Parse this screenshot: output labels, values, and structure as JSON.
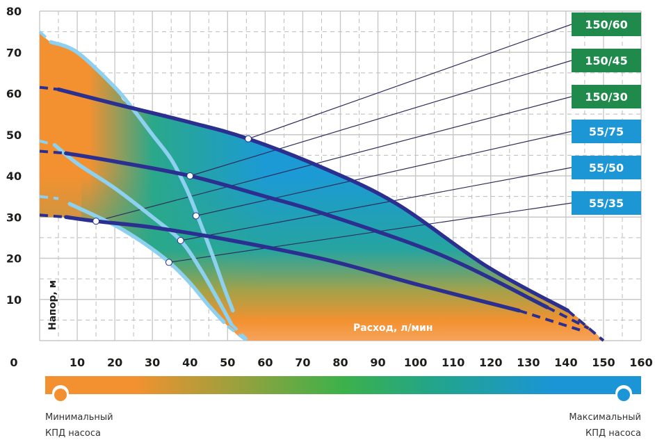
{
  "chart_data": {
    "type": "line",
    "xlabel": "Расход, л/мин",
    "ylabel": "Напор, м",
    "xlim": [
      0,
      160
    ],
    "ylim": [
      0,
      80
    ],
    "x_ticks": [
      0,
      10,
      20,
      30,
      40,
      50,
      60,
      70,
      80,
      90,
      100,
      110,
      120,
      130,
      140,
      150,
      160
    ],
    "y_ticks": [
      10,
      20,
      30,
      40,
      50,
      60,
      70,
      80
    ],
    "grid": true,
    "colors": {
      "dark_curve": "#2b2f8f",
      "light_curve": "#8dd0ef",
      "green_box": "#1f8a4c",
      "blue_box": "#1c96d4",
      "orange": "#f39130",
      "green": "#3cb14a",
      "blue": "#1b95d5"
    },
    "series": [
      {
        "name": "150/60",
        "group": "150",
        "box": "green",
        "lead": [
          [
            0,
            61.5
          ],
          [
            5,
            61
          ]
        ],
        "points": [
          [
            5,
            61
          ],
          [
            20,
            57.5
          ],
          [
            40,
            53
          ],
          [
            55.5,
            49
          ],
          [
            76,
            41.7
          ],
          [
            95,
            33.2
          ],
          [
            119,
            18
          ],
          [
            140.5,
            7.3
          ]
        ],
        "tail": [
          [
            140.5,
            7.3
          ],
          [
            150,
            0
          ]
        ],
        "marker": [
          55.5,
          49
        ]
      },
      {
        "name": "150/45",
        "group": "150",
        "box": "green",
        "lead": [
          [
            0,
            46
          ],
          [
            7,
            45.5
          ]
        ],
        "points": [
          [
            7,
            45.5
          ],
          [
            20,
            43.5
          ],
          [
            40,
            40
          ],
          [
            60,
            35
          ],
          [
            76,
            30.7
          ],
          [
            107,
            20.7
          ],
          [
            135,
            8.1
          ]
        ],
        "tail": [
          [
            135,
            8.1
          ],
          [
            146,
            3
          ]
        ],
        "marker": [
          40,
          40
        ]
      },
      {
        "name": "150/30",
        "group": "150",
        "box": "green",
        "lead": [
          [
            0,
            30.5
          ],
          [
            7,
            30
          ]
        ],
        "points": [
          [
            7,
            30
          ],
          [
            15,
            29
          ],
          [
            30,
            27.5
          ],
          [
            50,
            24.5
          ],
          [
            76,
            19.7
          ],
          [
            101,
            13.5
          ],
          [
            127.5,
            7.3
          ]
        ],
        "tail": [
          [
            127.5,
            7.3
          ],
          [
            144,
            2.5
          ]
        ],
        "marker": [
          15,
          29
        ]
      },
      {
        "name": "55/75",
        "group": "55",
        "box": "blue",
        "lead": [
          [
            0,
            75
          ],
          [
            3,
            72.5
          ]
        ],
        "points": [
          [
            3,
            72.5
          ],
          [
            10,
            70
          ],
          [
            20,
            61.5
          ],
          [
            25,
            56
          ],
          [
            30,
            50
          ],
          [
            35,
            44
          ],
          [
            39,
            37
          ],
          [
            42,
            30.3
          ],
          [
            46,
            20.7
          ],
          [
            49,
            13
          ],
          [
            51.4,
            7.3
          ]
        ],
        "tail": [],
        "marker": [
          41.6,
          30.3
        ]
      },
      {
        "name": "55/50",
        "group": "55",
        "box": "blue",
        "lead": [
          [
            0,
            48.5
          ],
          [
            4,
            47.5
          ]
        ],
        "points": [
          [
            4,
            47.5
          ],
          [
            10,
            43
          ],
          [
            20,
            37
          ],
          [
            30,
            30
          ],
          [
            37.5,
            24.3
          ],
          [
            43,
            17
          ],
          [
            48,
            9
          ],
          [
            51,
            4
          ]
        ],
        "tail": [
          [
            51,
            4
          ],
          [
            55.5,
            0
          ]
        ],
        "marker": [
          37.5,
          24.3
        ]
      },
      {
        "name": "55/35",
        "group": "55",
        "box": "blue",
        "lead": [
          [
            0,
            35
          ],
          [
            5,
            34.5
          ]
        ],
        "points": [
          [
            8,
            33.2
          ],
          [
            20,
            28
          ],
          [
            28,
            23.5
          ],
          [
            34.5,
            19
          ],
          [
            40,
            14
          ],
          [
            45,
            8.5
          ],
          [
            49,
            4.5
          ]
        ],
        "tail": [
          [
            50,
            3.5
          ],
          [
            55,
            0
          ]
        ],
        "marker": [
          34.4,
          19
        ]
      }
    ],
    "efficiency_scale": {
      "min_label_1": "Минимальный",
      "min_label_2": "КПД насоса",
      "max_label_1": "Максимальный",
      "max_label_2": "КПД насоса"
    }
  }
}
